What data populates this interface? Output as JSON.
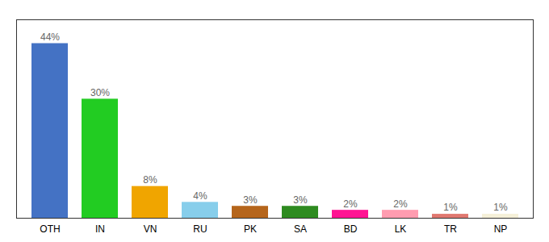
{
  "chart_data": {
    "type": "bar",
    "categories": [
      "OTH",
      "IN",
      "VN",
      "RU",
      "PK",
      "SA",
      "BD",
      "LK",
      "TR",
      "NP"
    ],
    "values": [
      44,
      30,
      8,
      4,
      3,
      3,
      2,
      2,
      1,
      1
    ],
    "value_labels": [
      "44%",
      "30%",
      "8%",
      "4%",
      "3%",
      "3%",
      "2%",
      "2%",
      "1%",
      "1%"
    ],
    "colors": [
      "#4472c4",
      "#22cc22",
      "#f0a500",
      "#87ceeb",
      "#b5651b",
      "#2e8b20",
      "#ff1493",
      "#ff9cb0",
      "#e07870",
      "#f5f0d8"
    ],
    "ylim": [
      0,
      50
    ],
    "grid": false,
    "data_labels": true,
    "tick_labels": "x"
  }
}
